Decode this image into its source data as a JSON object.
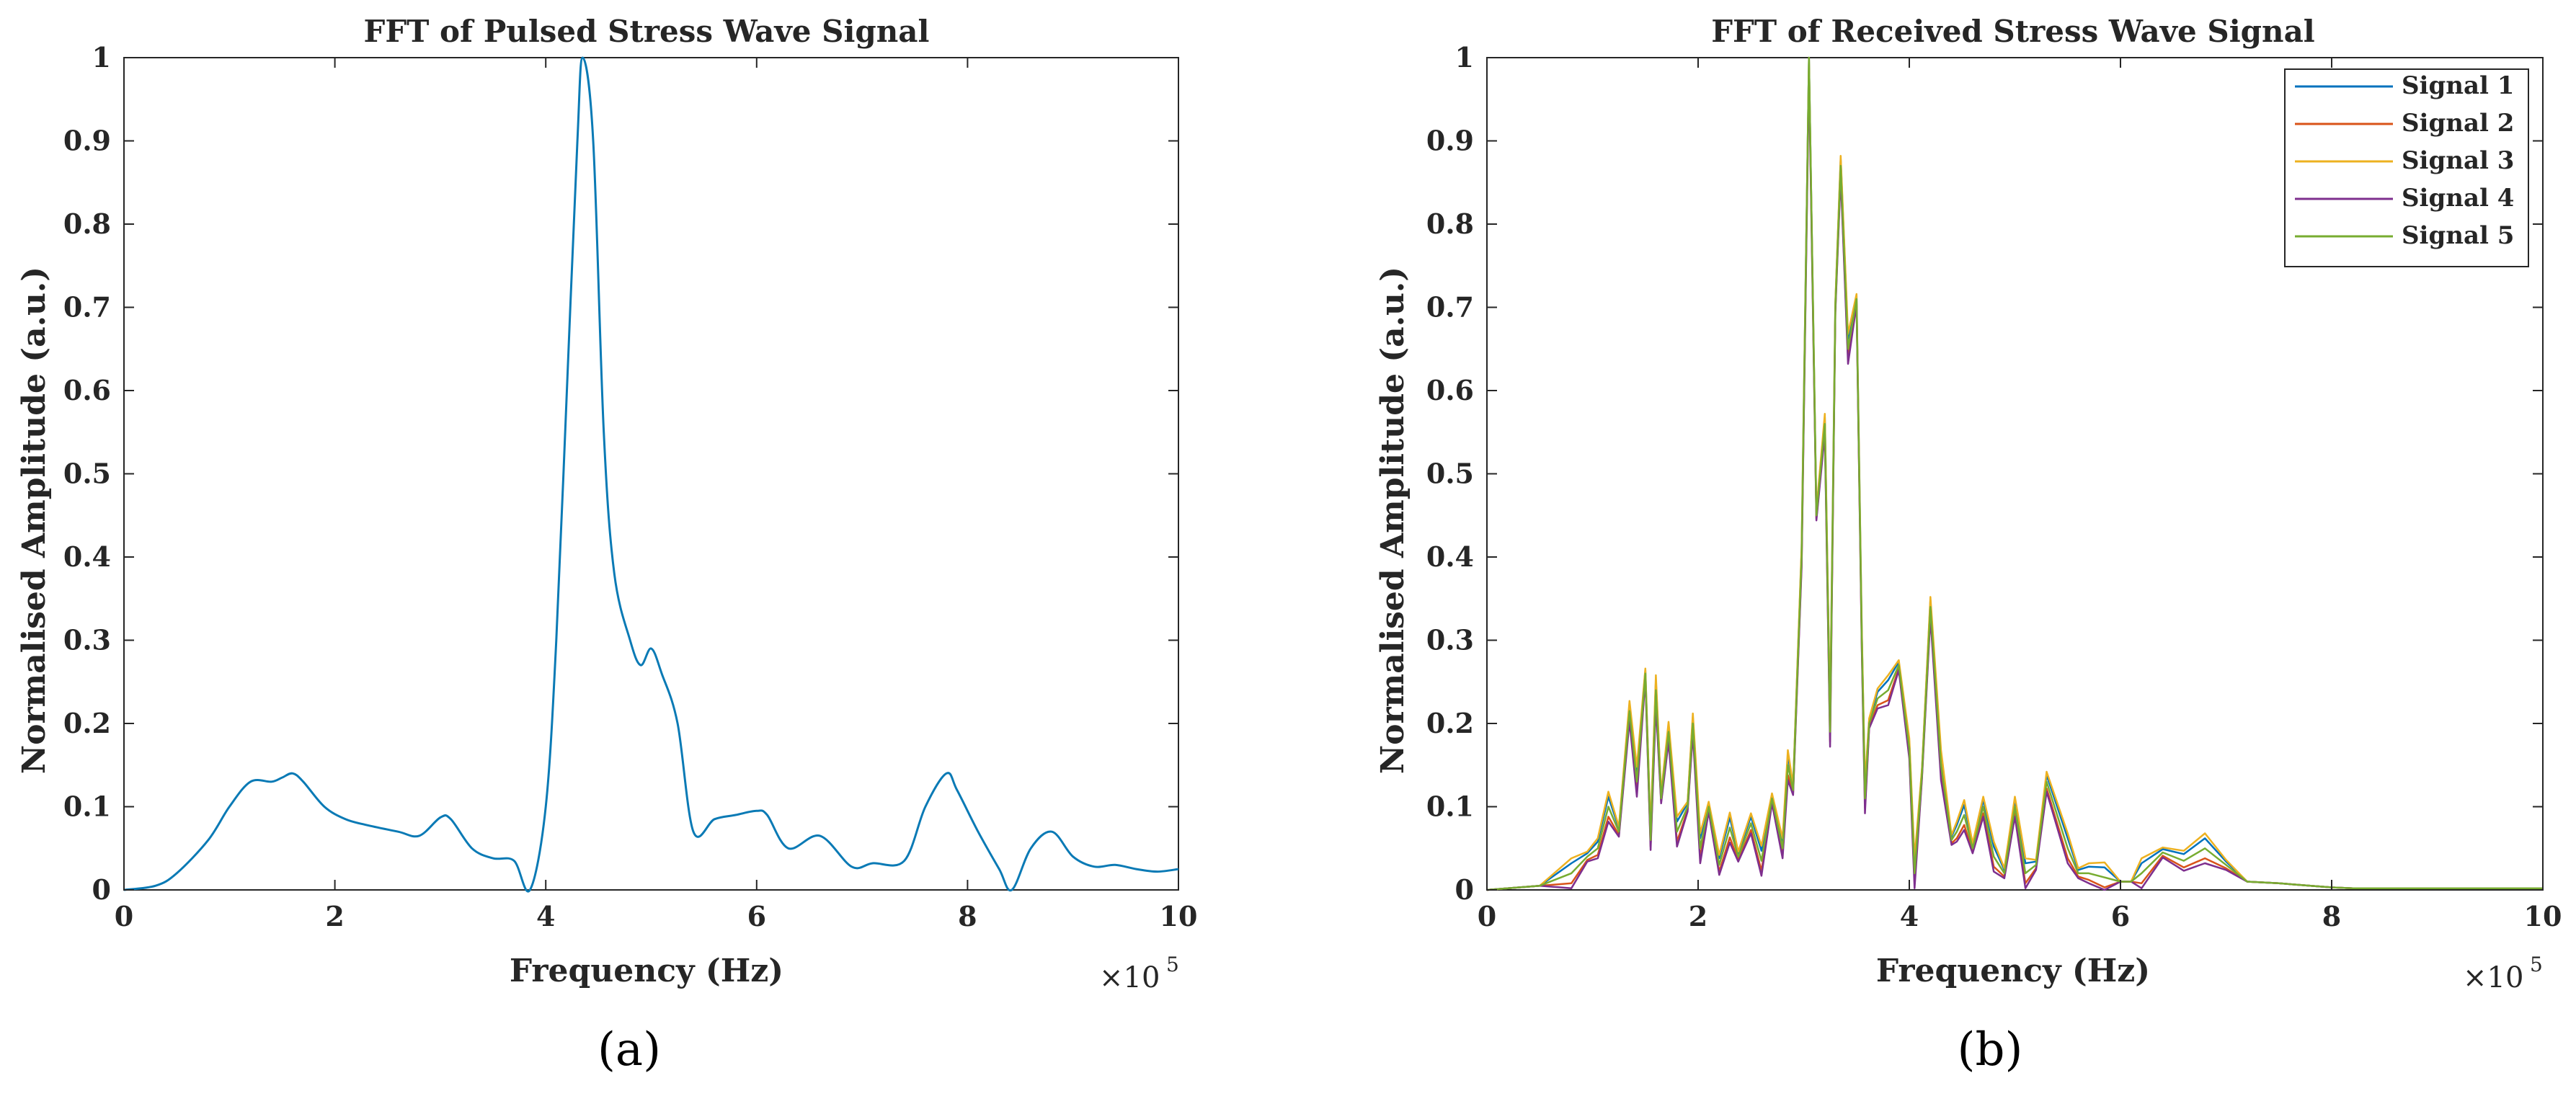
{
  "chart_data": [
    {
      "type": "line",
      "title": "FFT of Pulsed Stress Wave Signal",
      "xlabel": "Frequency (Hz)",
      "ylabel": "Normalised Amplitude (a.u.)",
      "x_multiplier": "×10",
      "x_multiplier_exp": "5",
      "xlim": [
        0,
        10
      ],
      "ylim": [
        0,
        1
      ],
      "xticks": [
        "0",
        "2",
        "4",
        "6",
        "8",
        "10"
      ],
      "yticks": [
        "0",
        "0.1",
        "0.2",
        "0.3",
        "0.4",
        "0.5",
        "0.6",
        "0.7",
        "0.8",
        "0.9",
        "1"
      ],
      "caption": "(a)",
      "series": [
        {
          "color": "#0a7ab5",
          "x": [
            0,
            0.3,
            0.5,
            0.8,
            1.0,
            1.2,
            1.4,
            1.5,
            1.6,
            1.7,
            1.9,
            2.1,
            2.3,
            2.6,
            2.8,
            3.0,
            3.1,
            3.3,
            3.5,
            3.7,
            3.85,
            4.0,
            4.1,
            4.2,
            4.3,
            4.35,
            4.45,
            4.55,
            4.65,
            4.8,
            4.9,
            5.0,
            5.1,
            5.25,
            5.4,
            5.6,
            5.8,
            6.0,
            6.1,
            6.3,
            6.6,
            6.9,
            7.1,
            7.4,
            7.6,
            7.8,
            7.9,
            8.1,
            8.3,
            8.42,
            8.6,
            8.8,
            9.0,
            9.2,
            9.4,
            9.6,
            9.8,
            10
          ],
          "y": [
            0,
            0.005,
            0.02,
            0.06,
            0.1,
            0.13,
            0.13,
            0.135,
            0.14,
            0.13,
            0.1,
            0.085,
            0.078,
            0.07,
            0.065,
            0.087,
            0.085,
            0.05,
            0.038,
            0.035,
            0.0,
            0.1,
            0.3,
            0.6,
            0.9,
            1.0,
            0.9,
            0.55,
            0.38,
            0.3,
            0.27,
            0.29,
            0.26,
            0.2,
            0.07,
            0.085,
            0.09,
            0.095,
            0.09,
            0.05,
            0.065,
            0.028,
            0.032,
            0.035,
            0.1,
            0.14,
            0.12,
            0.07,
            0.025,
            0.0,
            0.05,
            0.07,
            0.04,
            0.028,
            0.03,
            0.025,
            0.022,
            0.025
          ]
        }
      ]
    },
    {
      "type": "line",
      "title": "FFT of Received Stress Wave Signal",
      "xlabel": "Frequency (Hz)",
      "ylabel": "Normalised Amplitude (a.u.)",
      "x_multiplier": "×10",
      "x_multiplier_exp": "5",
      "xlim": [
        0,
        10
      ],
      "ylim": [
        0,
        1
      ],
      "xticks": [
        "0",
        "2",
        "4",
        "6",
        "8",
        "10"
      ],
      "yticks": [
        "0",
        "0.1",
        "0.2",
        "0.3",
        "0.4",
        "0.5",
        "0.6",
        "0.7",
        "0.8",
        "0.9",
        "1"
      ],
      "legend_placement": "top-right",
      "caption": "(b)",
      "series": [
        {
          "name": "Signal 1",
          "color": "#0072bd",
          "offset": 0.004
        },
        {
          "name": "Signal 2",
          "color": "#d95319",
          "offset": -0.004
        },
        {
          "name": "Signal 3",
          "color": "#edb120",
          "offset": 0.006
        },
        {
          "name": "Signal 4",
          "color": "#7e2f8e",
          "offset": -0.006
        },
        {
          "name": "Signal 5",
          "color": "#77ac30",
          "offset": 0.0
        }
      ],
      "base_x": [
        0,
        0.5,
        0.8,
        0.95,
        1.05,
        1.15,
        1.25,
        1.35,
        1.42,
        1.5,
        1.55,
        1.6,
        1.65,
        1.72,
        1.8,
        1.9,
        1.95,
        2.02,
        2.1,
        2.2,
        2.3,
        2.38,
        2.5,
        2.6,
        2.7,
        2.8,
        2.85,
        2.9,
        2.98,
        3.05,
        3.12,
        3.2,
        3.25,
        3.3,
        3.35,
        3.42,
        3.5,
        3.55,
        3.58,
        3.62,
        3.7,
        3.8,
        3.9,
        4.0,
        4.05,
        4.12,
        4.2,
        4.3,
        4.4,
        4.45,
        4.52,
        4.6,
        4.7,
        4.8,
        4.9,
        5.0,
        5.1,
        5.2,
        5.3,
        5.5,
        5.6,
        5.7,
        5.85,
        6.0,
        6.1,
        6.2,
        6.4,
        6.6,
        6.8,
        7.0,
        7.2,
        7.5,
        7.8,
        7.9,
        8.0,
        8.2,
        8.4,
        8.6,
        9.0,
        9.5,
        10
      ],
      "base_y": [
        0,
        0.005,
        0.02,
        0.04,
        0.05,
        0.1,
        0.07,
        0.215,
        0.13,
        0.26,
        0.06,
        0.24,
        0.11,
        0.19,
        0.07,
        0.1,
        0.2,
        0.05,
        0.1,
        0.03,
        0.075,
        0.04,
        0.08,
        0.035,
        0.11,
        0.05,
        0.15,
        0.12,
        0.4,
        1.0,
        0.45,
        0.56,
        0.19,
        0.7,
        0.87,
        0.65,
        0.71,
        0.3,
        0.11,
        0.2,
        0.23,
        0.24,
        0.27,
        0.17,
        0.02,
        0.14,
        0.34,
        0.15,
        0.06,
        0.07,
        0.09,
        0.05,
        0.1,
        0.04,
        0.02,
        0.1,
        0.02,
        0.03,
        0.13,
        0.05,
        0.02,
        0.02,
        0.015,
        0.01,
        0.01,
        0.02,
        0.045,
        0.035,
        0.05,
        0.03,
        0.01,
        0.008,
        0.005,
        0.004,
        0.003,
        0.002,
        0.002,
        0.002,
        0.002,
        0.002,
        0.002
      ]
    }
  ]
}
